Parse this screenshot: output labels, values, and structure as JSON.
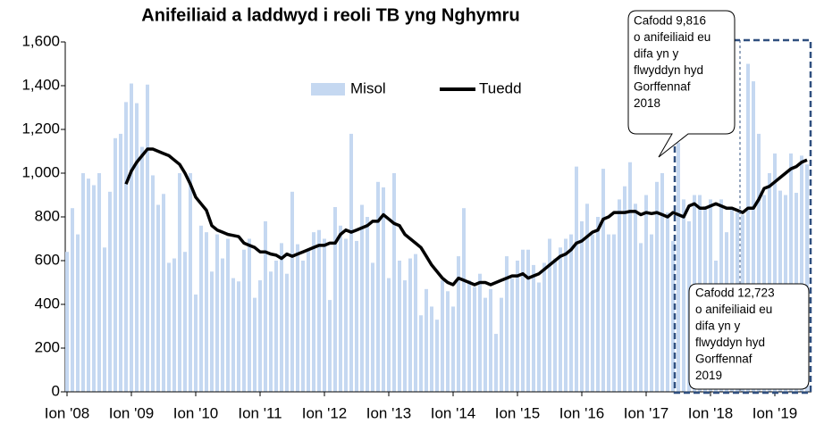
{
  "chart_data": {
    "type": "bar_line",
    "title": "Anifeiliaid a laddwyd i reoli TB yng Nghymru",
    "categories": [
      "Ion '08",
      null,
      null,
      null,
      null,
      null,
      null,
      null,
      null,
      null,
      null,
      null,
      "Ion '09",
      null,
      null,
      null,
      null,
      null,
      null,
      null,
      null,
      null,
      null,
      null,
      "Ion '10",
      null,
      null,
      null,
      null,
      null,
      null,
      null,
      null,
      null,
      null,
      null,
      "Ion '11",
      null,
      null,
      null,
      null,
      null,
      null,
      null,
      null,
      null,
      null,
      null,
      "Ion '12",
      null,
      null,
      null,
      null,
      null,
      null,
      null,
      null,
      null,
      null,
      null,
      "Ion '13",
      null,
      null,
      null,
      null,
      null,
      null,
      null,
      null,
      null,
      null,
      null,
      "Ion '14",
      null,
      null,
      null,
      null,
      null,
      null,
      null,
      null,
      null,
      null,
      null,
      "Ion '15",
      null,
      null,
      null,
      null,
      null,
      null,
      null,
      null,
      null,
      null,
      null,
      "Ion '16",
      null,
      null,
      null,
      null,
      null,
      null,
      null,
      null,
      null,
      null,
      null,
      "Ion '17",
      null,
      null,
      null,
      null,
      null,
      null,
      null,
      null,
      null,
      null,
      null,
      "Ion '18",
      null,
      null,
      null,
      null,
      null,
      null,
      null,
      null,
      null,
      null,
      null,
      "Ion '19",
      null,
      null,
      null,
      null,
      null,
      null
    ],
    "series": [
      {
        "name": "Misol",
        "kind": "bar",
        "color": "#c5d8f1",
        "values": [
          640,
          840,
          720,
          1000,
          975,
          945,
          1000,
          660,
          915,
          1160,
          1180,
          1325,
          1410,
          1320,
          1120,
          1405,
          990,
          855,
          905,
          590,
          610,
          1000,
          640,
          1000,
          445,
          760,
          730,
          550,
          720,
          610,
          700,
          520,
          505,
          650,
          700,
          430,
          510,
          780,
          550,
          600,
          680,
          540,
          915,
          675,
          600,
          650,
          730,
          740,
          700,
          420,
          845,
          760,
          700,
          1180,
          690,
          855,
          800,
          590,
          960,
          935,
          520,
          1000,
          600,
          510,
          610,
          630,
          350,
          470,
          390,
          330,
          510,
          460,
          390,
          620,
          840,
          510,
          480,
          540,
          430,
          470,
          265,
          430,
          620,
          520,
          600,
          650,
          650,
          580,
          500,
          590,
          700,
          610,
          660,
          700,
          720,
          1030,
          780,
          860,
          720,
          800,
          1020,
          720,
          720,
          880,
          940,
          1050,
          860,
          680,
          900,
          720,
          960,
          1000,
          820,
          690,
          1140,
          880,
          780,
          900,
          900,
          850,
          880,
          600,
          880,
          730,
          840,
          820,
          810,
          1500,
          1420,
          1180,
          900,
          1000,
          1090,
          920,
          900,
          1090,
          910,
          1080,
          1040
        ]
      },
      {
        "name": "Tuedd",
        "kind": "line",
        "color": "#000000",
        "values": [
          null,
          null,
          null,
          null,
          null,
          null,
          null,
          null,
          null,
          null,
          null,
          950,
          1010,
          1050,
          1080,
          1110,
          1110,
          1100,
          1090,
          1080,
          1060,
          1040,
          1000,
          950,
          890,
          860,
          830,
          760,
          740,
          730,
          720,
          715,
          710,
          680,
          670,
          660,
          640,
          640,
          630,
          625,
          610,
          630,
          620,
          630,
          640,
          650,
          660,
          670,
          670,
          680,
          680,
          720,
          740,
          730,
          740,
          750,
          760,
          780,
          780,
          810,
          790,
          770,
          760,
          720,
          700,
          680,
          660,
          620,
          580,
          550,
          520,
          500,
          490,
          520,
          510,
          500,
          490,
          500,
          500,
          490,
          500,
          510,
          520,
          530,
          530,
          540,
          520,
          530,
          540,
          560,
          580,
          600,
          620,
          630,
          650,
          680,
          690,
          710,
          730,
          740,
          790,
          800,
          820,
          820,
          820,
          825,
          825,
          810,
          820,
          815,
          820,
          810,
          800,
          820,
          810,
          800,
          850,
          860,
          840,
          840,
          850,
          860,
          850,
          840,
          840,
          830,
          820,
          840,
          840,
          880,
          930,
          940,
          960,
          980,
          1000,
          1020,
          1030,
          1050,
          1060
        ]
      }
    ],
    "ylim": [
      0,
      1600
    ],
    "yticks": [
      0,
      200,
      400,
      600,
      800,
      {
        "value": 1000,
        "label": "1,000"
      },
      {
        "value": 1200,
        "label": "1,200"
      },
      {
        "value": 1400,
        "label": "1,400"
      },
      {
        "value": 1600,
        "label": "1,600"
      }
    ],
    "annotations": [
      {
        "lines": [
          "Cafodd 9,816",
          "o anifeiliaid eu",
          "difa yn y",
          "flwyddyn hyd",
          "Gorffennaf",
          "2018"
        ]
      },
      {
        "lines": [
          "Cafodd 12,723",
          "o anifeiliaid eu",
          "difa yn y",
          "flwyddyn hyd",
          "Gorffennaf",
          "2019"
        ]
      }
    ]
  }
}
